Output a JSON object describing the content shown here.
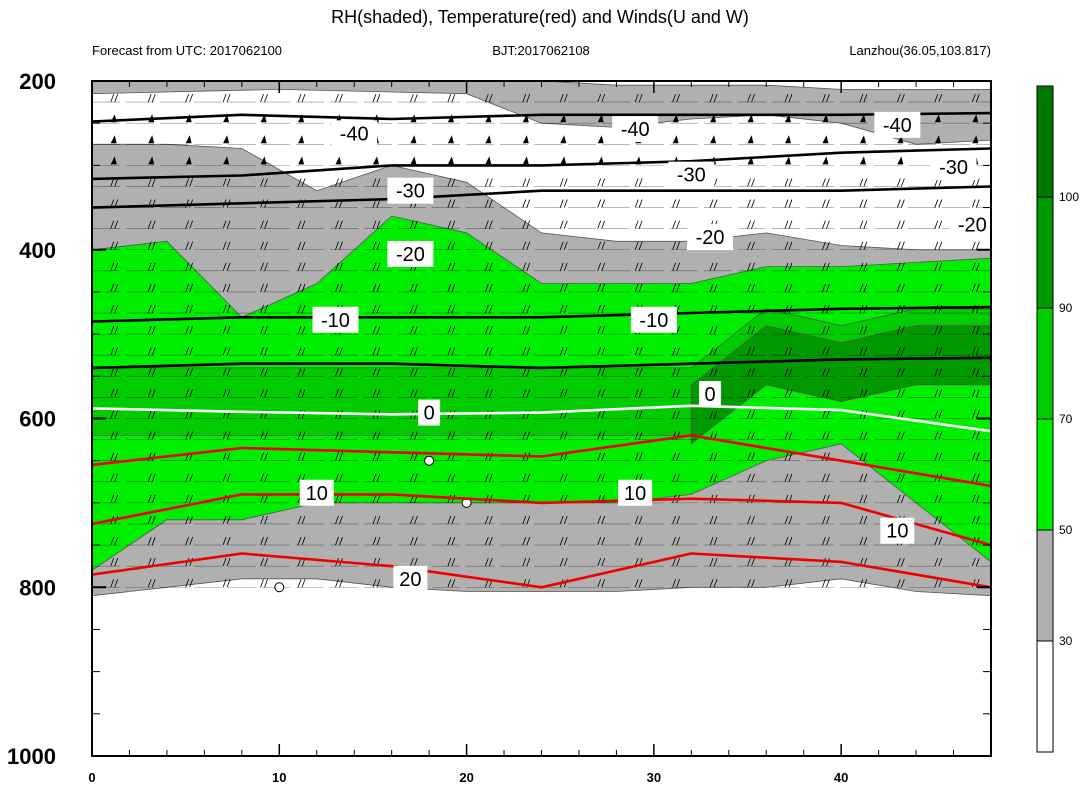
{
  "chart_data": {
    "type": "heatmap",
    "title": "RH(shaded), Temperature(red) and Winds(U and W)",
    "subtitle_left": "Forecast from UTC: 2017062100",
    "subtitle_center": "BJT:2017062108",
    "subtitle_right": "Lanzhou(36.05,103.817)",
    "xlim": [
      0,
      48
    ],
    "ylim": [
      200,
      1000
    ],
    "x_ticks": [
      0,
      10,
      20,
      30,
      40
    ],
    "y_ticks": [
      200,
      400,
      600,
      800,
      1000
    ],
    "y_reversed": true,
    "rh_levels": [
      30,
      50,
      70,
      90,
      100
    ],
    "rh_colors": [
      "#ffffff",
      "#b0b0b0",
      "#00ee00",
      "#00cc00",
      "#009900",
      "#007700"
    ],
    "rh_background": {
      "x": [
        0,
        4,
        8,
        12,
        16,
        20,
        24,
        28,
        32,
        36,
        40,
        44,
        48
      ],
      "top_gray": [
        275,
        275,
        280,
        330,
        300,
        320,
        380,
        390,
        390,
        380,
        395,
        400,
        400
      ],
      "top_green": [
        400,
        390,
        480,
        440,
        360,
        380,
        440,
        440,
        440,
        420,
        420,
        415,
        410
      ],
      "top_darkgreen": [
        560,
        560,
        560,
        560,
        560,
        560,
        560,
        560,
        560,
        490,
        510,
        490,
        490
      ],
      "bottom_green": [
        780,
        720,
        720,
        700,
        700,
        700,
        700,
        700,
        690,
        650,
        630,
        700,
        770
      ],
      "bottom_gray": [
        810,
        800,
        790,
        790,
        800,
        805,
        805,
        805,
        800,
        800,
        790,
        805,
        810
      ]
    },
    "rh_upper": {
      "x": [
        0,
        10,
        20,
        24,
        28,
        32,
        36,
        40,
        44,
        48
      ],
      "gray_top": [
        200,
        200,
        200,
        200,
        205,
        205,
        205,
        210,
        210,
        210
      ],
      "gray_bottom": [
        215,
        210,
        215,
        250,
        255,
        245,
        240,
        250,
        275,
        270
      ]
    },
    "temperature_contours": [
      {
        "label": "-40",
        "color": "#000000",
        "x": [
          0,
          8,
          16,
          24,
          32,
          40,
          48
        ],
        "p": [
          248,
          240,
          245,
          240,
          240,
          240,
          238
        ]
      },
      {
        "label": "-30",
        "color": "#000000",
        "x": [
          0,
          8,
          16,
          24,
          32,
          40,
          48
        ],
        "p": [
          316,
          312,
          300,
          300,
          295,
          285,
          280
        ]
      },
      {
        "label": "-20",
        "color": "#000000",
        "x": [
          0,
          8,
          16,
          24,
          32,
          40,
          48
        ],
        "p": [
          350,
          345,
          340,
          330,
          330,
          330,
          325
        ]
      },
      {
        "label": "-10",
        "color": "#000000",
        "x": [
          0,
          8,
          16,
          24,
          32,
          40,
          48
        ],
        "p": [
          485,
          480,
          480,
          480,
          475,
          470,
          468
        ]
      },
      {
        "label": "",
        "color": "#000000",
        "x": [
          0,
          8,
          16,
          24,
          32,
          40,
          48
        ],
        "p": [
          540,
          535,
          535,
          540,
          535,
          530,
          528
        ]
      },
      {
        "label": "0",
        "color": "#ffffff",
        "x": [
          0,
          8,
          16,
          24,
          32,
          40,
          48
        ],
        "p": [
          588,
          592,
          595,
          593,
          585,
          590,
          615
        ]
      },
      {
        "label": "",
        "color": "#ee0000",
        "x": [
          0,
          8,
          16,
          24,
          32,
          40,
          48
        ],
        "p": [
          655,
          635,
          640,
          645,
          620,
          650,
          680
        ]
      },
      {
        "label": "10",
        "color": "#ee0000",
        "x": [
          0,
          8,
          16,
          24,
          32,
          40,
          48
        ],
        "p": [
          725,
          690,
          690,
          700,
          695,
          700,
          750
        ]
      },
      {
        "label": "20",
        "color": "#ee0000",
        "x": [
          0,
          8,
          16,
          24,
          32,
          40,
          48
        ],
        "p": [
          785,
          760,
          775,
          800,
          760,
          770,
          800
        ]
      }
    ],
    "contour_labels": [
      {
        "text": "-40",
        "x": 14,
        "p": 262
      },
      {
        "text": "-40",
        "x": 29,
        "p": 257
      },
      {
        "text": "-40",
        "x": 43,
        "p": 252
      },
      {
        "text": "-30",
        "x": 17,
        "p": 330
      },
      {
        "text": "-30",
        "x": 32,
        "p": 311
      },
      {
        "text": "-30",
        "x": 46,
        "p": 302
      },
      {
        "text": "-20",
        "x": 17,
        "p": 405
      },
      {
        "text": "-20",
        "x": 33,
        "p": 385
      },
      {
        "text": "-20",
        "x": 47,
        "p": 370
      },
      {
        "text": "-10",
        "x": 13,
        "p": 483
      },
      {
        "text": "-10",
        "x": 30,
        "p": 483
      },
      {
        "text": "0",
        "x": 18,
        "p": 593
      },
      {
        "text": "0",
        "x": 33,
        "p": 571
      },
      {
        "text": "10",
        "x": 12,
        "p": 688
      },
      {
        "text": "10",
        "x": 29,
        "p": 688
      },
      {
        "text": "10",
        "x": 43,
        "p": 733
      },
      {
        "text": "20",
        "x": 17,
        "p": 790
      }
    ],
    "wind_levels": [
      225,
      250,
      275,
      300,
      325,
      350,
      375,
      400,
      425,
      450,
      475,
      500,
      525,
      550,
      575,
      600,
      625,
      650,
      675,
      700,
      725,
      750,
      775,
      800
    ],
    "wind_x": [
      1,
      3,
      5,
      7,
      9,
      11,
      13,
      15,
      17,
      19,
      21,
      23,
      25,
      27,
      29,
      31,
      33,
      35,
      37,
      39,
      41,
      43,
      45,
      47
    ],
    "calm_points": [
      {
        "x": 18,
        "p": 650
      },
      {
        "x": 20,
        "p": 700
      },
      {
        "x": 10,
        "p": 800
      }
    ]
  }
}
